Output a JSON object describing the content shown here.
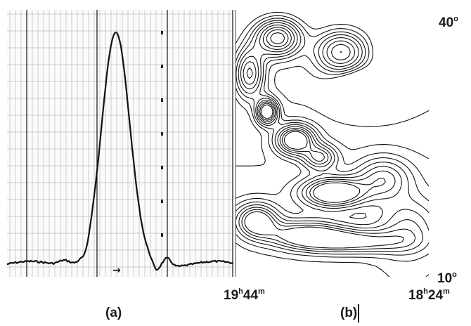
{
  "figure": {
    "panel_a": {
      "caption": "(a)",
      "arrow_glyph": "→",
      "description_type": "drift-scan strip chart",
      "peak_fraction_of_height": 0.93,
      "peak_position_fraction": 0.48
    },
    "panel_b": {
      "caption": "(b)",
      "declination_top": {
        "value": "40",
        "unit": "o"
      },
      "declination_bottom": {
        "value": "10",
        "unit": "o"
      },
      "ra_left": {
        "h": "19",
        "m": "44"
      },
      "ra_right": {
        "h": "18",
        "m": "24"
      }
    }
  },
  "colors": {
    "ink": "#1a1a1a",
    "grid": "#333333",
    "paper": "#ffffff"
  }
}
